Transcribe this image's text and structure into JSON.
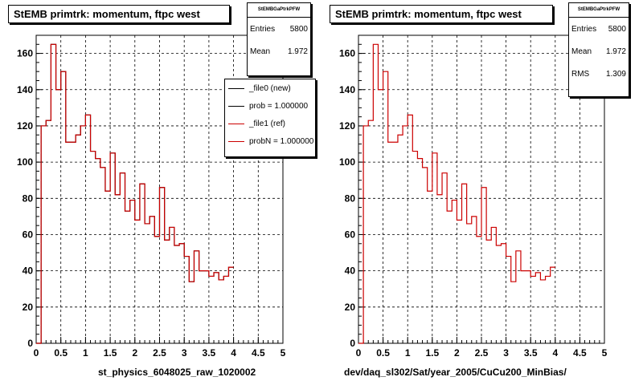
{
  "colors": {
    "ref": "#cc0000",
    "new": "#000000",
    "background": "#ffffff"
  },
  "left": {
    "title": "StEMB primtrk: momentum, ftpc west",
    "stats": {
      "header": "StEMBGaPtrkPFW",
      "rows": [
        {
          "label": "Entries",
          "value": "5800"
        },
        {
          "label": "Mean",
          "value": "1.972"
        }
      ]
    },
    "legend": [
      {
        "label": "_file0 (new)",
        "color": "#000000"
      },
      {
        "label": "prob = 1.000000",
        "color": "#000000"
      },
      {
        "label": "_file1 (ref)",
        "color": "#cc0000"
      },
      {
        "label": "probN = 1.000000",
        "color": "#cc0000"
      }
    ],
    "xcaption": "st_physics_6048025_raw_1020002"
  },
  "right": {
    "title": "StEMB primtrk: momentum, ftpc west",
    "stats": {
      "header": "StEMBGaPtrkPFW",
      "rows": [
        {
          "label": "Entries",
          "value": "5800"
        },
        {
          "label": "Mean",
          "value": "1.972"
        },
        {
          "label": "RMS",
          "value": "1.309"
        }
      ]
    },
    "xcaption": "dev/daq_sl302/Sat/year_2005/CuCu200_MinBias/"
  },
  "chart_data": [
    {
      "type": "histogram",
      "title": "StEMB primtrk: momentum, ftpc west",
      "xlabel": "st_physics_6048025_raw_1020002",
      "xlim": [
        0,
        5
      ],
      "ylim": [
        0,
        170
      ],
      "xticks": [
        "0",
        "0.5",
        "1",
        "1.5",
        "2",
        "2.5",
        "3",
        "3.5",
        "4",
        "4.5",
        "5"
      ],
      "yticks": [
        "0",
        "20",
        "40",
        "60",
        "80",
        "100",
        "120",
        "140",
        "160"
      ],
      "grid": true,
      "legend": "top-right",
      "bin_width": 0.1,
      "series": [
        {
          "name": "_file0 (new)",
          "values": [
            0,
            120,
            123,
            165,
            140,
            150,
            111,
            111,
            115,
            120,
            126,
            106,
            102,
            97,
            84,
            105,
            82,
            94,
            73,
            79,
            68,
            88,
            66,
            70,
            59,
            86,
            57,
            64,
            54,
            55,
            48,
            34,
            51,
            40,
            40,
            37,
            39,
            35,
            37,
            42
          ]
        },
        {
          "name": "_file1 (ref)",
          "values": [
            0,
            120,
            123,
            165,
            140,
            150,
            111,
            111,
            115,
            120,
            126,
            106,
            102,
            97,
            84,
            105,
            82,
            94,
            73,
            79,
            68,
            88,
            66,
            70,
            59,
            86,
            57,
            64,
            54,
            55,
            48,
            34,
            51,
            40,
            40,
            37,
            39,
            35,
            37,
            42
          ]
        }
      ]
    },
    {
      "type": "histogram",
      "title": "StEMB primtrk: momentum, ftpc west",
      "xlabel": "dev/daq_sl302/Sat/year_2005/CuCu200_MinBias/",
      "xlim": [
        0,
        5
      ],
      "ylim": [
        0,
        170
      ],
      "xticks": [
        "0",
        "0.5",
        "1",
        "1.5",
        "2",
        "2.5",
        "3",
        "3.5",
        "4",
        "4.5",
        "5"
      ],
      "yticks": [
        "0",
        "20",
        "40",
        "60",
        "80",
        "100",
        "120",
        "140",
        "160"
      ],
      "grid": true,
      "bin_width": 0.1,
      "series": [
        {
          "name": "_file1 (ref)",
          "values": [
            0,
            120,
            123,
            165,
            140,
            150,
            111,
            111,
            115,
            120,
            126,
            106,
            102,
            97,
            84,
            105,
            82,
            94,
            73,
            79,
            68,
            88,
            66,
            70,
            59,
            86,
            57,
            64,
            54,
            55,
            48,
            34,
            51,
            40,
            40,
            37,
            39,
            35,
            37,
            42
          ]
        }
      ]
    }
  ]
}
